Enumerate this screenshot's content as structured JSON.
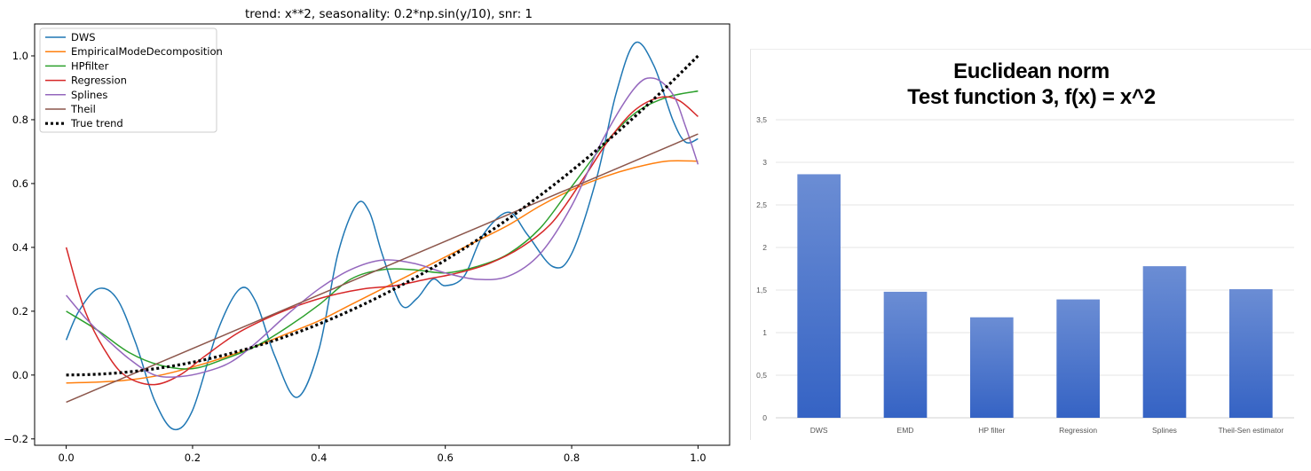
{
  "chart_data": [
    {
      "type": "line",
      "title": "trend: x**2, seasonality: 0.2*np.sin(y/10), snr: 1",
      "xlabel": "",
      "ylabel": "",
      "xlim": [
        -0.05,
        1.05
      ],
      "ylim": [
        -0.22,
        1.1
      ],
      "xticks": [
        0.0,
        0.2,
        0.4,
        0.6,
        0.8,
        1.0
      ],
      "xtick_labels": [
        "0.0",
        "0.2",
        "0.4",
        "0.6",
        "0.8",
        "1.0"
      ],
      "yticks": [
        -0.2,
        0.0,
        0.2,
        0.4,
        0.6,
        0.8,
        1.0
      ],
      "ytick_labels": [
        "−0.2",
        "0.0",
        "0.2",
        "0.4",
        "0.6",
        "0.8",
        "1.0"
      ],
      "grid": false,
      "legend_position": "top-left",
      "series": [
        {
          "name": "DWS",
          "color": "#1f77b4",
          "style": "solid",
          "x": [
            0,
            0.02,
            0.05,
            0.08,
            0.11,
            0.14,
            0.17,
            0.2,
            0.24,
            0.275,
            0.3,
            0.33,
            0.365,
            0.4,
            0.43,
            0.46,
            0.48,
            0.5,
            0.53,
            0.555,
            0.58,
            0.6,
            0.63,
            0.66,
            0.7,
            0.73,
            0.77,
            0.8,
            0.84,
            0.87,
            0.9,
            0.93,
            0.96,
            0.98,
            1.0
          ],
          "y": [
            0.11,
            0.2,
            0.27,
            0.24,
            0.1,
            -0.08,
            -0.17,
            -0.11,
            0.14,
            0.27,
            0.23,
            0.06,
            -0.07,
            0.08,
            0.38,
            0.535,
            0.51,
            0.38,
            0.22,
            0.24,
            0.3,
            0.28,
            0.31,
            0.44,
            0.51,
            0.44,
            0.34,
            0.38,
            0.62,
            0.88,
            1.04,
            0.97,
            0.8,
            0.73,
            0.74
          ]
        },
        {
          "name": "EmpiricalModeDecomposition",
          "color": "#ff7f0e",
          "style": "solid",
          "x": [
            0,
            0.05,
            0.1,
            0.15,
            0.2,
            0.25,
            0.3,
            0.35,
            0.4,
            0.45,
            0.5,
            0.55,
            0.6,
            0.65,
            0.7,
            0.75,
            0.8,
            0.85,
            0.9,
            0.95,
            1.0
          ],
          "y": [
            -0.025,
            -0.022,
            -0.015,
            0.0,
            0.025,
            0.055,
            0.09,
            0.13,
            0.17,
            0.22,
            0.27,
            0.32,
            0.37,
            0.42,
            0.47,
            0.53,
            0.58,
            0.62,
            0.65,
            0.67,
            0.67
          ]
        },
        {
          "name": "HPfilter",
          "color": "#2ca02c",
          "style": "solid",
          "x": [
            0,
            0.05,
            0.1,
            0.15,
            0.2,
            0.25,
            0.3,
            0.35,
            0.4,
            0.45,
            0.5,
            0.55,
            0.6,
            0.65,
            0.7,
            0.75,
            0.8,
            0.85,
            0.9,
            0.95,
            1.0
          ],
          "y": [
            0.2,
            0.14,
            0.07,
            0.03,
            0.02,
            0.05,
            0.09,
            0.15,
            0.22,
            0.3,
            0.33,
            0.33,
            0.32,
            0.34,
            0.38,
            0.46,
            0.59,
            0.72,
            0.82,
            0.87,
            0.89
          ]
        },
        {
          "name": "Regression",
          "color": "#d62728",
          "style": "solid",
          "x": [
            0,
            0.03,
            0.07,
            0.1,
            0.14,
            0.18,
            0.22,
            0.27,
            0.32,
            0.37,
            0.42,
            0.47,
            0.52,
            0.57,
            0.62,
            0.67,
            0.72,
            0.77,
            0.82,
            0.86,
            0.9,
            0.94,
            0.97,
            1.0
          ],
          "y": [
            0.4,
            0.2,
            0.05,
            -0.01,
            -0.03,
            0.0,
            0.06,
            0.13,
            0.18,
            0.22,
            0.25,
            0.27,
            0.28,
            0.3,
            0.32,
            0.35,
            0.4,
            0.48,
            0.62,
            0.74,
            0.83,
            0.87,
            0.86,
            0.81
          ]
        },
        {
          "name": "Splines",
          "color": "#9467bd",
          "style": "solid",
          "x": [
            0,
            0.03,
            0.06,
            0.1,
            0.14,
            0.18,
            0.22,
            0.26,
            0.3,
            0.35,
            0.4,
            0.45,
            0.5,
            0.55,
            0.6,
            0.65,
            0.7,
            0.75,
            0.8,
            0.85,
            0.9,
            0.93,
            0.96,
            0.98,
            1.0
          ],
          "y": [
            0.25,
            0.18,
            0.12,
            0.05,
            0.0,
            -0.005,
            0.01,
            0.04,
            0.1,
            0.19,
            0.27,
            0.33,
            0.36,
            0.35,
            0.32,
            0.3,
            0.31,
            0.38,
            0.53,
            0.74,
            0.9,
            0.93,
            0.88,
            0.78,
            0.66
          ]
        },
        {
          "name": "Theil",
          "color": "#8c564b",
          "style": "solid",
          "x": [
            0,
            1.0
          ],
          "y": [
            -0.085,
            0.755
          ]
        },
        {
          "name": "True trend",
          "color": "#000000",
          "style": "dotted",
          "x": [
            0,
            0.05,
            0.1,
            0.15,
            0.2,
            0.25,
            0.3,
            0.35,
            0.4,
            0.45,
            0.5,
            0.55,
            0.6,
            0.65,
            0.7,
            0.75,
            0.8,
            0.85,
            0.9,
            0.95,
            1.0
          ],
          "y": [
            0.0,
            0.0025,
            0.01,
            0.0225,
            0.04,
            0.0625,
            0.09,
            0.1225,
            0.16,
            0.2025,
            0.25,
            0.3025,
            0.36,
            0.4225,
            0.49,
            0.5625,
            0.64,
            0.7225,
            0.81,
            0.9025,
            1.0
          ]
        }
      ]
    },
    {
      "type": "bar",
      "title_lines": [
        "Euclidean norm",
        "Test function 3, f(x) = x^2"
      ],
      "xlabel": "",
      "ylabel": "",
      "categories": [
        "DWS",
        "EMD",
        "HP filter",
        "Regression",
        "Splines",
        "Theil-Sen estimator"
      ],
      "values": [
        2.86,
        1.48,
        1.18,
        1.39,
        1.78,
        1.51
      ],
      "ylim": [
        0,
        3.5
      ],
      "yticks": [
        0,
        0.5,
        1,
        1.5,
        2,
        2.5,
        3,
        3.5
      ],
      "ytick_labels": [
        "0",
        "0,5",
        "1",
        "1,5",
        "2",
        "2,5",
        "3",
        "3,5"
      ],
      "grid": true,
      "bar_color_top": "#6b8dd4",
      "bar_color_bottom": "#3563c4"
    }
  ]
}
